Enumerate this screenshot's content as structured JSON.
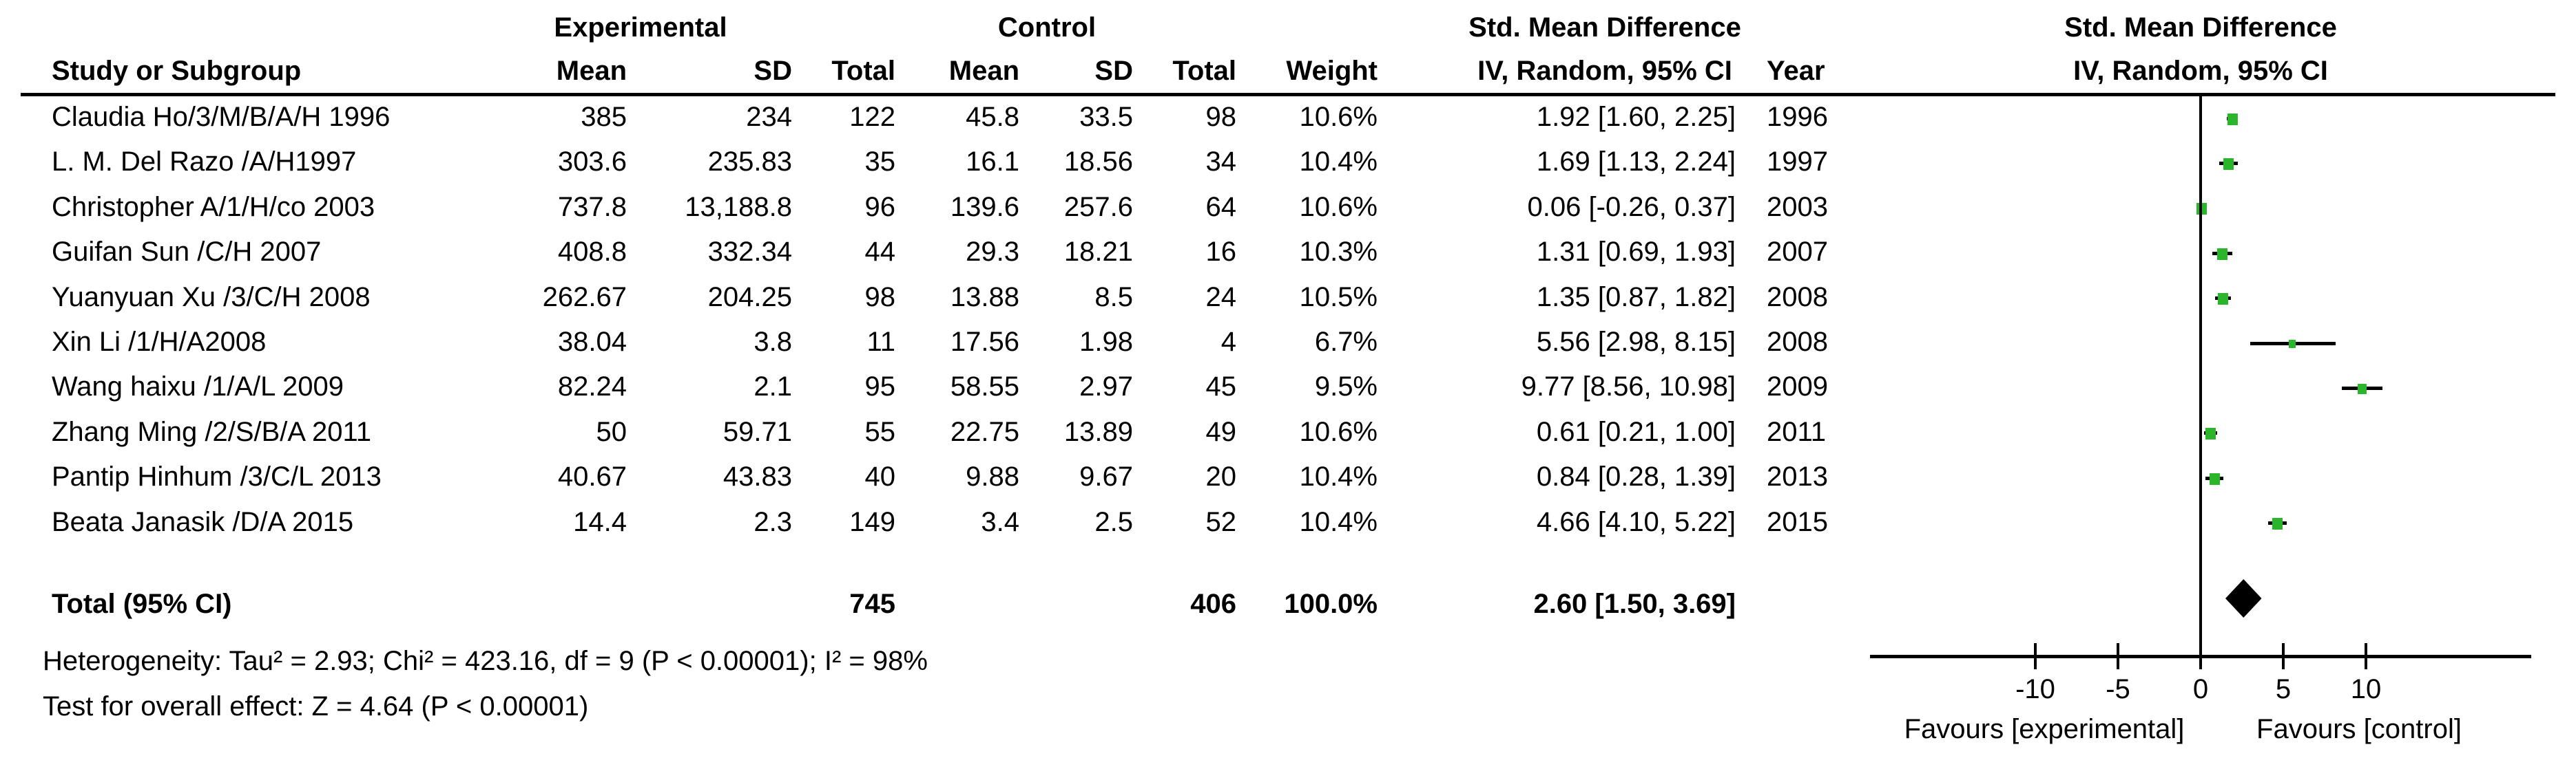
{
  "header": {
    "group_experimental": "Experimental",
    "group_control": "Control",
    "smd_left_line1": "Std. Mean Difference",
    "smd_left_line2": "IV, Random, 95% CI",
    "smd_right_line1": "Std. Mean Difference",
    "smd_right_line2": "IV, Random, 95% CI",
    "col_study": "Study or Subgroup",
    "col_mean_exp": "Mean",
    "col_sd_exp": "SD",
    "col_total_exp": "Total",
    "col_mean_ctl": "Mean",
    "col_sd_ctl": "SD",
    "col_total_ctl": "Total",
    "col_weight": "Weight",
    "col_year": "Year"
  },
  "rows": [
    {
      "study": "Claudia Ho/3/M/B/A/H 1996",
      "mean_e": "385",
      "sd_e": "234",
      "total_e": "122",
      "mean_c": "45.8",
      "sd_c": "33.5",
      "total_c": "98",
      "weight": "10.6%",
      "ci_text": "1.92 [1.60, 2.25]",
      "year": "1996",
      "est": 1.92,
      "lo": 1.6,
      "hi": 2.25,
      "weight_pct": 10.6
    },
    {
      "study": "L. M. Del Razo /A/H1997",
      "mean_e": "303.6",
      "sd_e": "235.83",
      "total_e": "35",
      "mean_c": "16.1",
      "sd_c": "18.56",
      "total_c": "34",
      "weight": "10.4%",
      "ci_text": "1.69 [1.13, 2.24]",
      "year": "1997",
      "est": 1.69,
      "lo": 1.13,
      "hi": 2.24,
      "weight_pct": 10.4
    },
    {
      "study": "Christopher A/1/H/co 2003",
      "mean_e": "737.8",
      "sd_e": "13,188.8",
      "total_e": "96",
      "mean_c": "139.6",
      "sd_c": "257.6",
      "total_c": "64",
      "weight": "10.6%",
      "ci_text": "0.06 [-0.26, 0.37]",
      "year": "2003",
      "est": 0.06,
      "lo": -0.26,
      "hi": 0.37,
      "weight_pct": 10.6
    },
    {
      "study": "Guifan Sun /C/H 2007",
      "mean_e": "408.8",
      "sd_e": "332.34",
      "total_e": "44",
      "mean_c": "29.3",
      "sd_c": "18.21",
      "total_c": "16",
      "weight": "10.3%",
      "ci_text": "1.31 [0.69, 1.93]",
      "year": "2007",
      "est": 1.31,
      "lo": 0.69,
      "hi": 1.93,
      "weight_pct": 10.3
    },
    {
      "study": "Yuanyuan Xu /3/C/H 2008",
      "mean_e": "262.67",
      "sd_e": "204.25",
      "total_e": "98",
      "mean_c": "13.88",
      "sd_c": "8.5",
      "total_c": "24",
      "weight": "10.5%",
      "ci_text": "1.35 [0.87, 1.82]",
      "year": "2008",
      "est": 1.35,
      "lo": 0.87,
      "hi": 1.82,
      "weight_pct": 10.5
    },
    {
      "study": "Xin Li /1/H/A2008",
      "mean_e": "38.04",
      "sd_e": "3.8",
      "total_e": "11",
      "mean_c": "17.56",
      "sd_c": "1.98",
      "total_c": "4",
      "weight": "6.7%",
      "ci_text": "5.56 [2.98, 8.15]",
      "year": "2008",
      "est": 5.56,
      "lo": 2.98,
      "hi": 8.15,
      "weight_pct": 6.7
    },
    {
      "study": "Wang haixu /1/A/L 2009",
      "mean_e": "82.24",
      "sd_e": "2.1",
      "total_e": "95",
      "mean_c": "58.55",
      "sd_c": "2.97",
      "total_c": "45",
      "weight": "9.5%",
      "ci_text": "9.77 [8.56, 10.98]",
      "year": "2009",
      "est": 9.77,
      "lo": 8.56,
      "hi": 10.98,
      "weight_pct": 9.5
    },
    {
      "study": "Zhang Ming /2/S/B/A 2011",
      "mean_e": "50",
      "sd_e": "59.71",
      "total_e": "55",
      "mean_c": "22.75",
      "sd_c": "13.89",
      "total_c": "49",
      "weight": "10.6%",
      "ci_text": "0.61 [0.21, 1.00]",
      "year": "2011",
      "est": 0.61,
      "lo": 0.21,
      "hi": 1.0,
      "weight_pct": 10.6
    },
    {
      "study": "Pantip Hinhum /3/C/L 2013",
      "mean_e": "40.67",
      "sd_e": "43.83",
      "total_e": "40",
      "mean_c": "9.88",
      "sd_c": "9.67",
      "total_c": "20",
      "weight": "10.4%",
      "ci_text": "0.84 [0.28, 1.39]",
      "year": "2013",
      "est": 0.84,
      "lo": 0.28,
      "hi": 1.39,
      "weight_pct": 10.4
    },
    {
      "study": "Beata Janasik /D/A 2015",
      "mean_e": "14.4",
      "sd_e": "2.3",
      "total_e": "149",
      "mean_c": "3.4",
      "sd_c": "2.5",
      "total_c": "52",
      "weight": "10.4%",
      "ci_text": "4.66 [4.10, 5.22]",
      "year": "2015",
      "est": 4.66,
      "lo": 4.1,
      "hi": 5.22,
      "weight_pct": 10.4
    }
  ],
  "total": {
    "label": "Total (95% CI)",
    "total_e": "745",
    "total_c": "406",
    "weight": "100.0%",
    "ci_text": "2.60 [1.50, 3.69]",
    "est": 2.6,
    "lo": 1.5,
    "hi": 3.69
  },
  "footer": {
    "heterogeneity": "Heterogeneity: Tau² = 2.93; Chi² = 423.16, df = 9 (P < 0.00001); I² = 98%",
    "overall_effect": "Test for overall effect: Z = 4.64 (P < 0.00001)"
  },
  "axis": {
    "ticks": [
      "-10",
      "-5",
      "0",
      "5",
      "10"
    ],
    "tick_values": [
      -10,
      -5,
      0,
      5,
      10
    ],
    "range": [
      -20,
      20
    ],
    "favours_left": "Favours [experimental]",
    "favours_right": "Favours [control]"
  },
  "colors": {
    "marker_green": "#2BB52B",
    "line_black": "#000000",
    "background": "#FFFFFF"
  },
  "chart_data": {
    "type": "forest",
    "effect_measure": "Std. Mean Difference",
    "model": "IV, Random, 95% CI",
    "x_range": [
      -20,
      20
    ],
    "x_ticks": [
      -10,
      -5,
      0,
      5,
      10
    ],
    "favours_left": "Favours [experimental]",
    "favours_right": "Favours [control]",
    "studies": [
      {
        "name": "Claudia Ho/3/M/B/A/H 1996",
        "year": 1996,
        "est": 1.92,
        "lo": 1.6,
        "hi": 2.25,
        "weight_pct": 10.6
      },
      {
        "name": "L. M. Del Razo /A/H1997",
        "year": 1997,
        "est": 1.69,
        "lo": 1.13,
        "hi": 2.24,
        "weight_pct": 10.4
      },
      {
        "name": "Christopher A/1/H/co 2003",
        "year": 2003,
        "est": 0.06,
        "lo": -0.26,
        "hi": 0.37,
        "weight_pct": 10.6
      },
      {
        "name": "Guifan Sun /C/H 2007",
        "year": 2007,
        "est": 1.31,
        "lo": 0.69,
        "hi": 1.93,
        "weight_pct": 10.3
      },
      {
        "name": "Yuanyuan Xu /3/C/H 2008",
        "year": 2008,
        "est": 1.35,
        "lo": 0.87,
        "hi": 1.82,
        "weight_pct": 10.5
      },
      {
        "name": "Xin Li /1/H/A2008",
        "year": 2008,
        "est": 5.56,
        "lo": 2.98,
        "hi": 8.15,
        "weight_pct": 6.7
      },
      {
        "name": "Wang haixu /1/A/L 2009",
        "year": 2009,
        "est": 9.77,
        "lo": 8.56,
        "hi": 10.98,
        "weight_pct": 9.5
      },
      {
        "name": "Zhang Ming /2/S/B/A 2011",
        "year": 2011,
        "est": 0.61,
        "lo": 0.21,
        "hi": 1.0,
        "weight_pct": 10.6
      },
      {
        "name": "Pantip Hinhum /3/C/L 2013",
        "year": 2013,
        "est": 0.84,
        "lo": 0.28,
        "hi": 1.39,
        "weight_pct": 10.4
      },
      {
        "name": "Beata Janasik /D/A 2015",
        "year": 2015,
        "est": 4.66,
        "lo": 4.1,
        "hi": 5.22,
        "weight_pct": 10.4
      }
    ],
    "overall": {
      "label": "Total (95% CI)",
      "est": 2.6,
      "lo": 1.5,
      "hi": 3.69,
      "n_exp": 745,
      "n_ctl": 406,
      "weight_pct": 100.0
    },
    "heterogeneity": {
      "tau2": 2.93,
      "chi2": 423.16,
      "df": 9,
      "p": "< 0.00001",
      "i2_pct": 98
    },
    "overall_test": {
      "z": 4.64,
      "p": "< 0.00001"
    }
  }
}
